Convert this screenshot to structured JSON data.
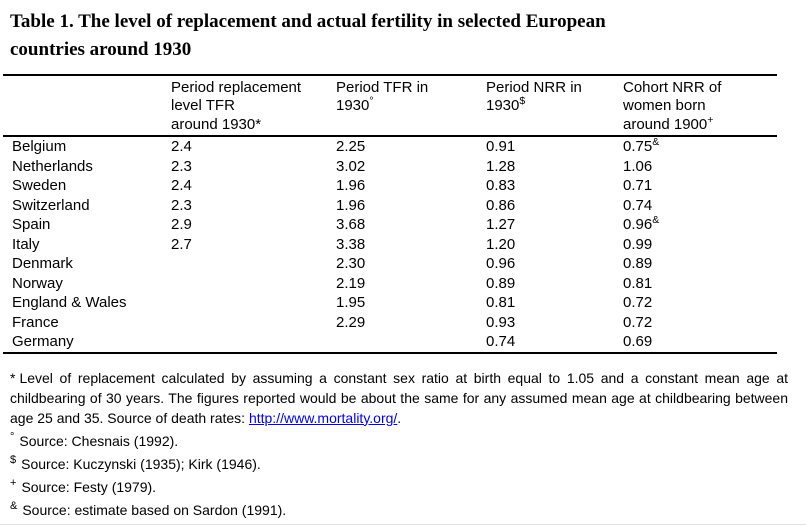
{
  "title_lines": [
    "Table 1. The level of replacement and actual fertility in selected European",
    "countries around 1930"
  ],
  "table": {
    "columns": [
      {
        "lines": [
          "Period replacement",
          "level TFR",
          "around 1930*"
        ]
      },
      {
        "lines": [
          "Period TFR in",
          "1930"
        ],
        "sup": "°"
      },
      {
        "lines": [
          "Period NRR in",
          "1930"
        ],
        "sup": "$"
      },
      {
        "lines": [
          "Cohort NRR of",
          "women born",
          "around 1900"
        ],
        "sup": "+"
      }
    ],
    "rows": [
      {
        "country": "Belgium",
        "rep_tfr": "2.4",
        "tfr": "2.25",
        "nrr": "0.91",
        "cohort": "0.75",
        "cohort_sup": "&"
      },
      {
        "country": "Netherlands",
        "rep_tfr": "2.3",
        "tfr": "3.02",
        "nrr": "1.28",
        "cohort": "1.06"
      },
      {
        "country": "Sweden",
        "rep_tfr": "2.4",
        "tfr": "1.96",
        "nrr": "0.83",
        "cohort": "0.71"
      },
      {
        "country": "Switzerland",
        "rep_tfr": "2.3",
        "tfr": "1.96",
        "nrr": "0.86",
        "cohort": "0.74"
      },
      {
        "country": "Spain",
        "rep_tfr": "2.9",
        "tfr": "3.68",
        "nrr": "1.27",
        "cohort": "0.96",
        "cohort_sup": "&"
      },
      {
        "country": "Italy",
        "rep_tfr": "2.7",
        "tfr": "3.38",
        "nrr": "1.20",
        "cohort": "0.99"
      },
      {
        "country": "Denmark",
        "rep_tfr": "",
        "tfr": "2.30",
        "nrr": "0.96",
        "cohort": "0.89"
      },
      {
        "country": "Norway",
        "rep_tfr": "",
        "tfr": "2.19",
        "nrr": "0.89",
        "cohort": "0.81"
      },
      {
        "country": "England & Wales",
        "rep_tfr": "",
        "tfr": "1.95",
        "nrr": "0.81",
        "cohort": "0.72"
      },
      {
        "country": "France",
        "rep_tfr": "",
        "tfr": "2.29",
        "nrr": "0.93",
        "cohort": "0.72"
      },
      {
        "country": "Germany",
        "rep_tfr": "",
        "tfr": "",
        "nrr": "0.74",
        "cohort": "0.69"
      }
    ]
  },
  "footnotes": {
    "star": {
      "marker": "*",
      "text": "Level of replacement calculated by assuming a constant sex ratio at birth equal to 1.05 and a constant mean age at childbearing of 30 years. The figures reported would be about the same for any assumed mean age at childbearing between age 25 and 35. Source of death rates: ",
      "link": "http://www.mortality.org/",
      "after": "."
    },
    "degree": {
      "marker": "°",
      "text": "Source: Chesnais (1992)."
    },
    "dollar": {
      "marker": "$",
      "text": "Source: Kuczynski (1935); Kirk (1946)."
    },
    "plus": {
      "marker": "+",
      "text": "Source: Festy (1979)."
    },
    "amp": {
      "marker": "&",
      "text": "Source: estimate based on Sardon (1991)."
    }
  },
  "colors": {
    "text": "#000000",
    "rule": "#000000",
    "link_blue": "#0000EE",
    "background": "#ffffff"
  }
}
